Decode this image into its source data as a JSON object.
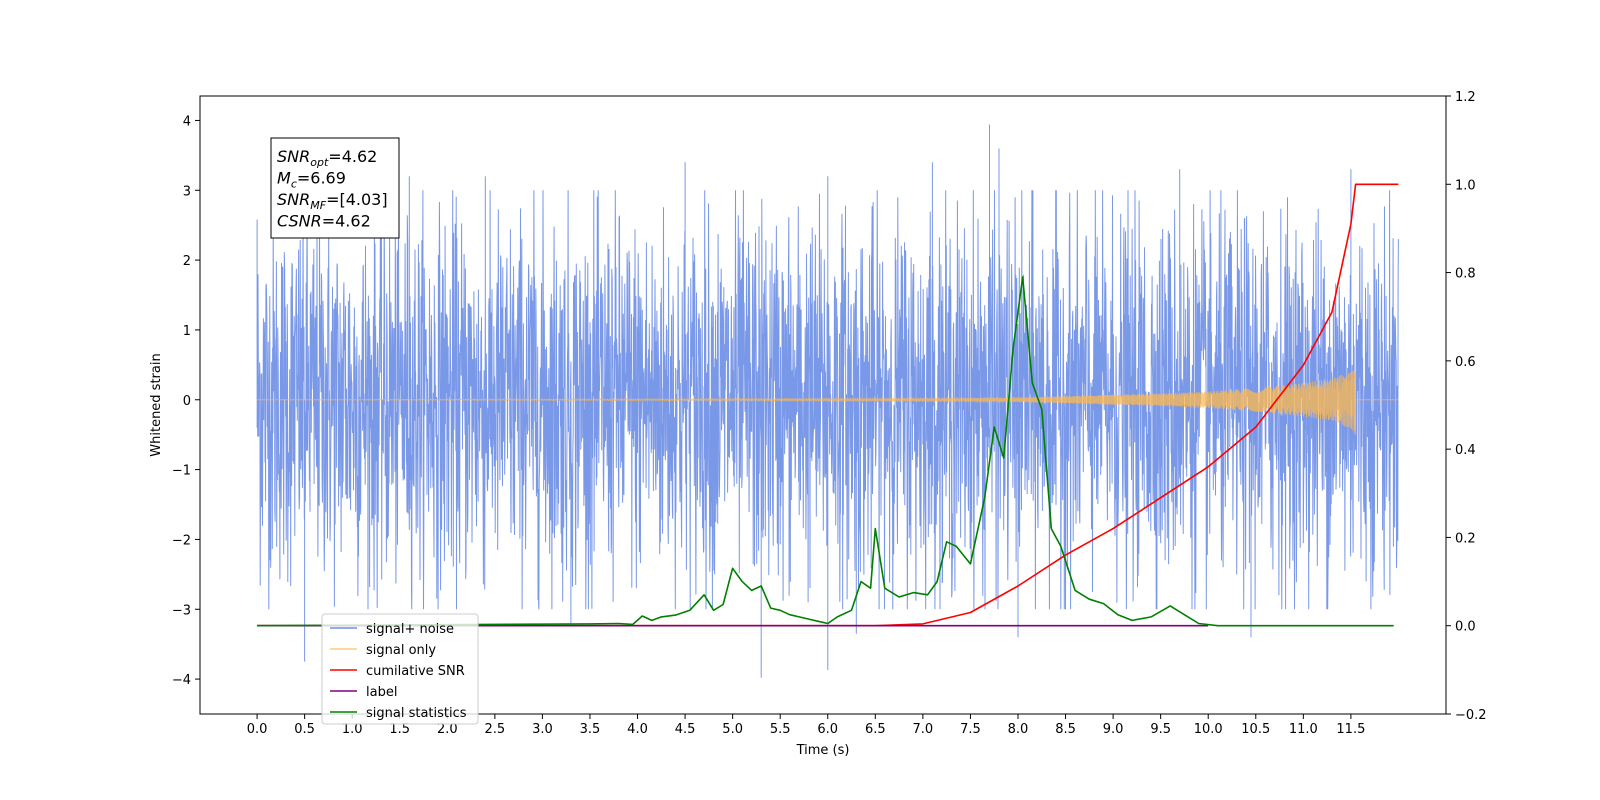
{
  "chart_data": {
    "type": "line",
    "xlabel": "Time (s)",
    "ylabel": "Whitened strain",
    "xlim": [
      -0.6,
      12.5
    ],
    "ylim": [
      -4.5,
      4.35
    ],
    "y2lim": [
      -0.2,
      1.2
    ],
    "grid": false,
    "legend_location": "lower-left",
    "x_ticks": [
      "0.0",
      "0.5",
      "1.0",
      "1.5",
      "2.0",
      "2.5",
      "3.0",
      "3.5",
      "4.0",
      "4.5",
      "5.0",
      "5.5",
      "6.0",
      "6.5",
      "7.0",
      "7.5",
      "8.0",
      "8.5",
      "9.0",
      "9.5",
      "10.0",
      "10.5",
      "11.0",
      "11.5"
    ],
    "y_ticks": [
      "4",
      "3",
      "2",
      "1",
      "0",
      "−1",
      "−2",
      "−3",
      "−4"
    ],
    "y2_ticks": [
      "1.2",
      "1.0",
      "0.8",
      "0.6",
      "0.4",
      "0.2",
      "0.0",
      "−0.2"
    ],
    "annotations": [
      {
        "base": "SNR",
        "sub": "opt",
        "value": "=4.62"
      },
      {
        "base": "M",
        "sub": "c",
        "value": "=6.69"
      },
      {
        "base": "SNR",
        "sub": "MF",
        "value": "=[4.03]"
      },
      {
        "base": "CSNR",
        "sub": "",
        "value": "=4.62"
      }
    ],
    "series": [
      {
        "name": "signal+ noise",
        "color": "#6f8fe6",
        "axis": "left",
        "x_range": [
          0.0,
          12.0
        ],
        "typical_amplitude": [
          -2.2,
          2.5
        ],
        "peaks": [
          [
            0.0,
            2.58
          ],
          [
            0.5,
            -3.75
          ],
          [
            1.6,
            3.2
          ],
          [
            2.4,
            3.2
          ],
          [
            3.3,
            -3.2
          ],
          [
            4.5,
            3.4
          ],
          [
            5.3,
            -3.98
          ],
          [
            6.0,
            3.2
          ],
          [
            6.0,
            -3.87
          ],
          [
            6.3,
            -3.35
          ],
          [
            7.1,
            3.4
          ],
          [
            7.7,
            3.94
          ],
          [
            7.8,
            3.6
          ],
          [
            8.0,
            -3.4
          ],
          [
            9.7,
            3.3
          ],
          [
            10.45,
            -3.4
          ],
          [
            11.5,
            3.3
          ]
        ]
      },
      {
        "name": "signal only",
        "color": "#ffb84d",
        "axis": "left",
        "x": [
          0.0,
          7.5,
          8.0,
          8.5,
          9.0,
          9.5,
          10.0,
          10.5,
          11.0,
          11.3,
          11.5,
          11.55
        ],
        "amplitude": [
          0.0,
          0.02,
          0.03,
          0.05,
          0.07,
          0.09,
          0.12,
          0.17,
          0.24,
          0.3,
          0.42,
          0.5
        ]
      },
      {
        "name": "cumilative SNR",
        "color": "#ff0000",
        "axis": "right",
        "x": [
          0.0,
          6.5,
          7.0,
          7.5,
          8.0,
          8.5,
          9.0,
          9.5,
          10.0,
          10.5,
          11.0,
          11.3,
          11.5,
          11.55,
          12.0
        ],
        "y": [
          0.0,
          0.0,
          0.004,
          0.03,
          0.09,
          0.16,
          0.22,
          0.29,
          0.36,
          0.45,
          0.59,
          0.71,
          0.91,
          1.0,
          1.0
        ]
      },
      {
        "name": "label",
        "color": "#800080",
        "axis": "right",
        "x": [
          0.0,
          10.0
        ],
        "y": [
          0.0,
          0.0
        ]
      },
      {
        "name": "signal statistics",
        "color": "#008000",
        "axis": "right",
        "x": [
          0.0,
          3.5,
          3.8,
          3.95,
          4.05,
          4.15,
          4.25,
          4.4,
          4.55,
          4.7,
          4.8,
          4.9,
          5.0,
          5.1,
          5.2,
          5.3,
          5.4,
          5.5,
          5.6,
          5.7,
          5.8,
          5.9,
          6.0,
          6.1,
          6.25,
          6.35,
          6.45,
          6.5,
          6.6,
          6.75,
          6.9,
          7.05,
          7.15,
          7.25,
          7.35,
          7.5,
          7.65,
          7.75,
          7.85,
          7.95,
          8.05,
          8.15,
          8.25,
          8.35,
          8.45,
          8.6,
          8.75,
          8.9,
          9.05,
          9.2,
          9.4,
          9.6,
          9.75,
          9.9,
          10.1,
          10.5,
          11.0,
          11.5,
          11.95
        ],
        "y": [
          0.0,
          0.004,
          0.005,
          0.003,
          0.022,
          0.012,
          0.02,
          0.024,
          0.035,
          0.07,
          0.035,
          0.048,
          0.13,
          0.1,
          0.08,
          0.09,
          0.04,
          0.035,
          0.025,
          0.02,
          0.015,
          0.01,
          0.005,
          0.02,
          0.035,
          0.1,
          0.085,
          0.22,
          0.085,
          0.065,
          0.075,
          0.07,
          0.1,
          0.19,
          0.18,
          0.14,
          0.29,
          0.45,
          0.38,
          0.63,
          0.79,
          0.55,
          0.49,
          0.22,
          0.18,
          0.08,
          0.06,
          0.05,
          0.025,
          0.012,
          0.02,
          0.045,
          0.025,
          0.005,
          0.0,
          0.0,
          0.0,
          0.0,
          0.0
        ]
      }
    ]
  }
}
